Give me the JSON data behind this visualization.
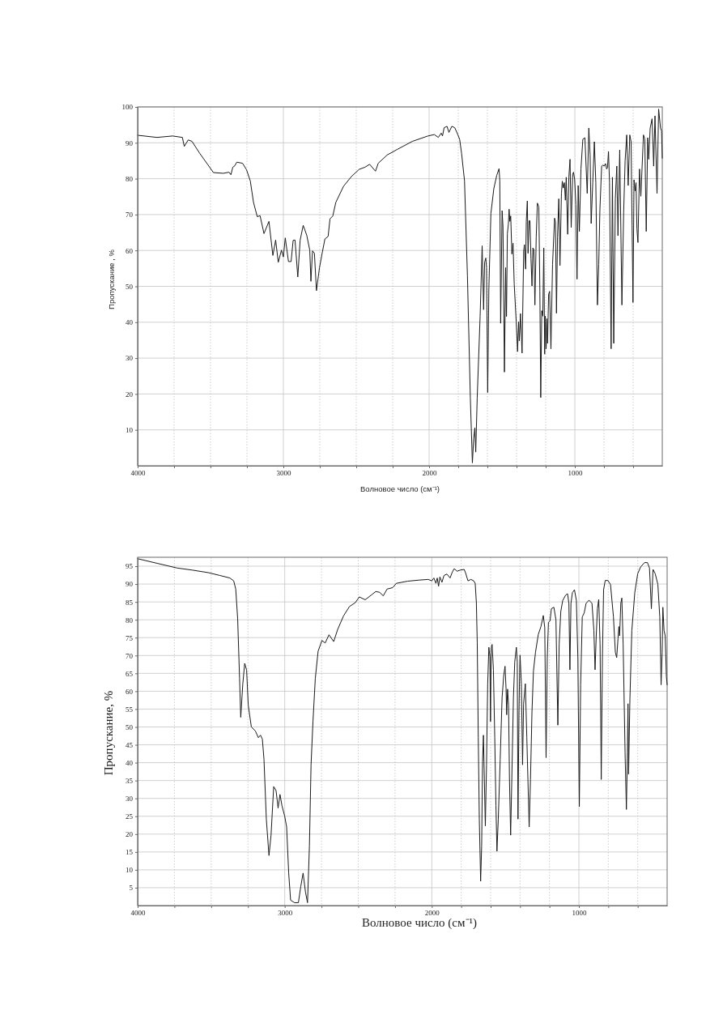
{
  "chart_data": [
    {
      "type": "line",
      "xlabel": "Волновое число (см⁻¹)",
      "ylabel": "Пропускание , %",
      "xlim": [
        4000,
        400
      ],
      "ylim": [
        0,
        100
      ],
      "xticks": [
        4000,
        {
          "value": 3750,
          "label": null
        },
        {
          "value": 3500,
          "label": null
        },
        {
          "value": 3250,
          "label": null
        },
        3000,
        {
          "value": 2750,
          "label": null
        },
        {
          "value": 2500,
          "label": null
        },
        {
          "value": 2250,
          "label": null
        },
        2000,
        {
          "value": 1800,
          "label": null
        },
        {
          "value": 1600,
          "label": null
        },
        {
          "value": 1400,
          "label": null
        },
        {
          "value": 1200,
          "label": null
        },
        1000,
        {
          "value": 800,
          "label": null
        },
        {
          "value": 600,
          "label": null
        }
      ],
      "yticks": [
        10,
        20,
        30,
        40,
        50,
        60,
        70,
        80,
        90,
        100
      ],
      "grid": true,
      "x": [
        4000,
        3867,
        3760,
        3693,
        3680,
        3653,
        3627,
        3573,
        3520,
        3480,
        3413,
        3373,
        3360,
        3347,
        3333,
        3320,
        3280,
        3253,
        3227,
        3205,
        3179,
        3160,
        3133,
        3099,
        3072,
        3053,
        3035,
        3013,
        3000,
        2987,
        2965,
        2947,
        2933,
        2920,
        2901,
        2885,
        2864,
        2840,
        2819,
        2811,
        2800,
        2787,
        2773,
        2752,
        2733,
        2715,
        2693,
        2680,
        2661,
        2640,
        2587,
        2533,
        2480,
        2440,
        2408,
        2368,
        2349,
        2288,
        2221,
        2115,
        2008,
        1964,
        1937,
        1917,
        1908,
        1897,
        1877,
        1864,
        1844,
        1824,
        1803,
        1790,
        1777,
        1757,
        1737,
        1717,
        1703,
        1694,
        1686,
        1680,
        1670,
        1650,
        1636,
        1626,
        1619,
        1611,
        1606,
        1598,
        1590,
        1576,
        1556,
        1536,
        1520,
        1515,
        1509,
        1499,
        1493,
        1483,
        1475,
        1469,
        1463,
        1456,
        1451,
        1446,
        1440,
        1432,
        1424,
        1416,
        1406,
        1402,
        1393,
        1386,
        1381,
        1373,
        1362,
        1351,
        1346,
        1338,
        1333,
        1326,
        1321,
        1314,
        1308,
        1301,
        1294,
        1288,
        1281,
        1274,
        1265,
        1257,
        1247,
        1240,
        1234,
        1227,
        1220,
        1213,
        1207,
        1203,
        1197,
        1192,
        1187,
        1180,
        1173,
        1164,
        1153,
        1139,
        1133,
        1126,
        1119,
        1110,
        1102,
        1092,
        1086,
        1079,
        1072,
        1065,
        1059,
        1049,
        1041,
        1033,
        1025,
        1015,
        1009,
        1001,
        993,
        985,
        977,
        969,
        958,
        945,
        931,
        915,
        904,
        895,
        888,
        877,
        866,
        856,
        845,
        836,
        828,
        816,
        807,
        799,
        789,
        782,
        776,
        769,
        762,
        751,
        742,
        733,
        722,
        712,
        704,
        692,
        677,
        665,
        655,
        644,
        634,
        623,
        614,
        601,
        594,
        586,
        580,
        574,
        567,
        556,
        547,
        529,
        520,
        510,
        500,
        493,
        483,
        470,
        459,
        450,
        436,
        425,
        412,
        405,
        400
      ],
      "series": [
        {
          "color": "#1a1a1a",
          "values": [
            92.1,
            91.5,
            91.9,
            91.5,
            89,
            90.8,
            90.4,
            87,
            84,
            81.7,
            81.5,
            81.8,
            81.1,
            83.2,
            83.6,
            84.6,
            84.3,
            82.5,
            79.4,
            73.4,
            69.4,
            69.7,
            64.7,
            68.1,
            58.6,
            62.9,
            56.7,
            60.1,
            58.2,
            63.5,
            56.9,
            56.9,
            62.8,
            62.9,
            52.6,
            62.8,
            67,
            64.3,
            60.1,
            51.4,
            59.9,
            59.2,
            48.8,
            55.2,
            59.4,
            63.2,
            63.9,
            68.8,
            69.6,
            73.4,
            77.9,
            80.6,
            82.6,
            83.2,
            84,
            82.1,
            84.3,
            86.6,
            88.1,
            90.4,
            91.9,
            92.3,
            91.5,
            92.7,
            91.9,
            94.2,
            94.6,
            92.9,
            94.6,
            94.2,
            92.3,
            90.9,
            87,
            79.4,
            53,
            18.9,
            0.8,
            7.6,
            10.6,
            3.8,
            18.9,
            41.6,
            61.3,
            43.5,
            56.7,
            57.9,
            55.2,
            20.4,
            49.2,
            70.3,
            77.2,
            80.9,
            82.8,
            79.4,
            39.7,
            71.1,
            66.6,
            26.1,
            55.2,
            41.6,
            64.7,
            67.3,
            71.5,
            68.1,
            69.6,
            59,
            62,
            50.7,
            43.1,
            40.1,
            31.8,
            40.1,
            34.8,
            42.4,
            31.4,
            59.8,
            61.6,
            54.8,
            68.1,
            73.8,
            59.2,
            68.3,
            68.3,
            57.7,
            50.1,
            60.7,
            60.3,
            44.8,
            63.7,
            73.2,
            72.1,
            48.6,
            19,
            43.2,
            41.7,
            60.7,
            31.1,
            41.7,
            32.6,
            41,
            34.1,
            47.8,
            48.6,
            32.6,
            56.1,
            69,
            67.9,
            42.5,
            63.7,
            74.4,
            55.8,
            75.9,
            79.3,
            77.4,
            78.9,
            74,
            80.4,
            64.5,
            80.4,
            85.4,
            66.4,
            81.2,
            81.8,
            79.7,
            72.8,
            52,
            78.1,
            65.3,
            82.7,
            91,
            91.4,
            75.9,
            94.1,
            86.5,
            67.5,
            78.9,
            90.3,
            78.9,
            44.8,
            56.1,
            71.3,
            83.5,
            83.8,
            83.5,
            84.2,
            82.7,
            83.1,
            87.6,
            78.9,
            32.6,
            80.4,
            34.1,
            74.4,
            83.5,
            64.1,
            88,
            44.8,
            70.6,
            85,
            92.2,
            78.1,
            92.2,
            90.3,
            45.5,
            79.7,
            76.6,
            78.9,
            66,
            62.2,
            82.7,
            75.1,
            92.2,
            91,
            65.3,
            91.4,
            85.4,
            94.1,
            96.7,
            83.5,
            97.5,
            75.9,
            99.4,
            94.1,
            93.3,
            85.7
          ]
        }
      ]
    },
    {
      "type": "line",
      "xlabel": "Волновое число (см⁻¹)",
      "ylabel": "Пропускание, %",
      "xlim": [
        4000,
        400
      ],
      "ylim": [
        0,
        97.5
      ],
      "xticks": [
        4000,
        {
          "value": 3750,
          "label": null
        },
        {
          "value": 3500,
          "label": null
        },
        {
          "value": 3250,
          "label": null
        },
        3000,
        {
          "value": 2750,
          "label": null
        },
        {
          "value": 2500,
          "label": null
        },
        {
          "value": 2250,
          "label": null
        },
        2000,
        {
          "value": 1800,
          "label": null
        },
        {
          "value": 1600,
          "label": null
        },
        {
          "value": 1400,
          "label": null
        },
        {
          "value": 1200,
          "label": null
        },
        1000,
        {
          "value": 800,
          "label": null
        },
        {
          "value": 600,
          "label": null
        }
      ],
      "yticks": [
        5,
        10,
        15,
        20,
        25,
        30,
        35,
        40,
        45,
        50,
        55,
        60,
        65,
        70,
        75,
        80,
        85,
        90,
        95
      ],
      "grid": true,
      "x": [
        4000,
        3867,
        3733,
        3627,
        3520,
        3440,
        3373,
        3347,
        3333,
        3320,
        3307,
        3299,
        3285,
        3272,
        3259,
        3248,
        3227,
        3200,
        3179,
        3165,
        3152,
        3141,
        3125,
        3107,
        3093,
        3075,
        3059,
        3045,
        3032,
        3019,
        3000,
        2987,
        2973,
        2960,
        2933,
        2907,
        2891,
        2875,
        2859,
        2845,
        2832,
        2821,
        2808,
        2792,
        2773,
        2747,
        2725,
        2699,
        2667,
        2640,
        2600,
        2560,
        2520,
        2493,
        2453,
        2406,
        2381,
        2355,
        2330,
        2304,
        2266,
        2241,
        2165,
        2089,
        2025,
        2000,
        1986,
        1972,
        1963,
        1954,
        1945,
        1931,
        1917,
        1897,
        1876,
        1862,
        1848,
        1828,
        1807,
        1780,
        1771,
        1754,
        1734,
        1715,
        1705,
        1697,
        1691,
        1684,
        1677,
        1668,
        1661,
        1655,
        1649,
        1644,
        1636,
        1628,
        1620,
        1612,
        1605,
        1601,
        1596,
        1590,
        1581,
        1572,
        1564,
        1557,
        1548,
        1535,
        1522,
        1511,
        1502,
        1495,
        1491,
        1485,
        1478,
        1472,
        1464,
        1456,
        1445,
        1436,
        1425,
        1419,
        1414,
        1407,
        1403,
        1400,
        1391,
        1383,
        1376,
        1364,
        1354,
        1338,
        1329,
        1319,
        1309,
        1295,
        1276,
        1258,
        1242,
        1232,
        1223,
        1215,
        1207,
        1196,
        1187,
        1170,
        1156,
        1143,
        1134,
        1123,
        1110,
        1090,
        1077,
        1068,
        1061,
        1054,
        1044,
        1030,
        1017,
        1007,
        997,
        988,
        977,
        964,
        951,
        931,
        911,
        898,
        890,
        882,
        874,
        865,
        856,
        848,
        840,
        832,
        821,
        803,
        785,
        765,
        752,
        743,
        734,
        728,
        723,
        715,
        708,
        699,
        686,
        677,
        670,
        666,
        662,
        653,
        640,
        620,
        600,
        580,
        554,
        534,
        520,
        507,
        496,
        481,
        463,
        450,
        441,
        434,
        429,
        421,
        413,
        405,
        400
      ],
      "series": [
        {
          "color": "#1a1a1a",
          "values": [
            97.1,
            95.8,
            94.5,
            93.9,
            93.2,
            92.4,
            91.7,
            90.9,
            88.6,
            80.3,
            63.6,
            52.7,
            62.1,
            67.8,
            65.9,
            56.1,
            50,
            48.9,
            47,
            47.7,
            46.6,
            40.9,
            24.2,
            14,
            19.7,
            33.3,
            32.2,
            27.3,
            31.1,
            28,
            25,
            22,
            9.1,
            1.5,
            0.8,
            0.8,
            5.3,
            9.1,
            3.8,
            0.8,
            16.7,
            39.4,
            51.5,
            63.6,
            71.2,
            74.2,
            73.5,
            75.8,
            73.9,
            77.3,
            81.1,
            83.7,
            84.8,
            86.4,
            85.6,
            87.1,
            87.9,
            87.7,
            86.7,
            88.6,
            89,
            90.2,
            90.8,
            91.1,
            91.3,
            90.9,
            91.7,
            90.2,
            91.7,
            89.4,
            92,
            90.5,
            92.4,
            92.8,
            91.7,
            93.2,
            94.3,
            93.6,
            93.9,
            94.1,
            93.2,
            90.9,
            91.3,
            90.9,
            90.2,
            84.8,
            73.5,
            47,
            24.2,
            6.8,
            16.7,
            40.2,
            47.7,
            37.9,
            22.3,
            39.4,
            62.1,
            72.3,
            69.7,
            51.5,
            72,
            73.1,
            65.9,
            47,
            28,
            15.2,
            24.2,
            40.9,
            58.3,
            64.4,
            67,
            60.6,
            53.4,
            60.6,
            56.1,
            35.6,
            19.7,
            35.6,
            58.3,
            68.2,
            72.3,
            68.2,
            24.2,
            54.5,
            65.2,
            70.1,
            62.1,
            39.4,
            56.4,
            62.1,
            47,
            22,
            35.3,
            54.2,
            65.6,
            70.9,
            75.9,
            78.1,
            81.2,
            77.8,
            41.4,
            69.4,
            79.3,
            79.7,
            83.1,
            83.5,
            80,
            50.5,
            73.2,
            82.3,
            85.4,
            86.9,
            87.3,
            84.6,
            66,
            84.6,
            87.6,
            88.4,
            85.4,
            69.4,
            27.7,
            61.8,
            80.8,
            81.9,
            84.6,
            85.5,
            84.6,
            77,
            66,
            75.5,
            83.1,
            85.7,
            73.2,
            35.3,
            69.4,
            88.4,
            91,
            91,
            89.9,
            80.8,
            70.9,
            69.4,
            74.7,
            78.1,
            75.5,
            84.6,
            86.1,
            73.2,
            42.9,
            26.9,
            42.9,
            56.5,
            36.8,
            58,
            77,
            87.6,
            92.9,
            94.8,
            96,
            96,
            94.5,
            83.1,
            94.1,
            92.9,
            89.9,
            80.8,
            61.8,
            70.9,
            83.5,
            77,
            75.5,
            64.1,
            61.8
          ]
        }
      ]
    }
  ]
}
